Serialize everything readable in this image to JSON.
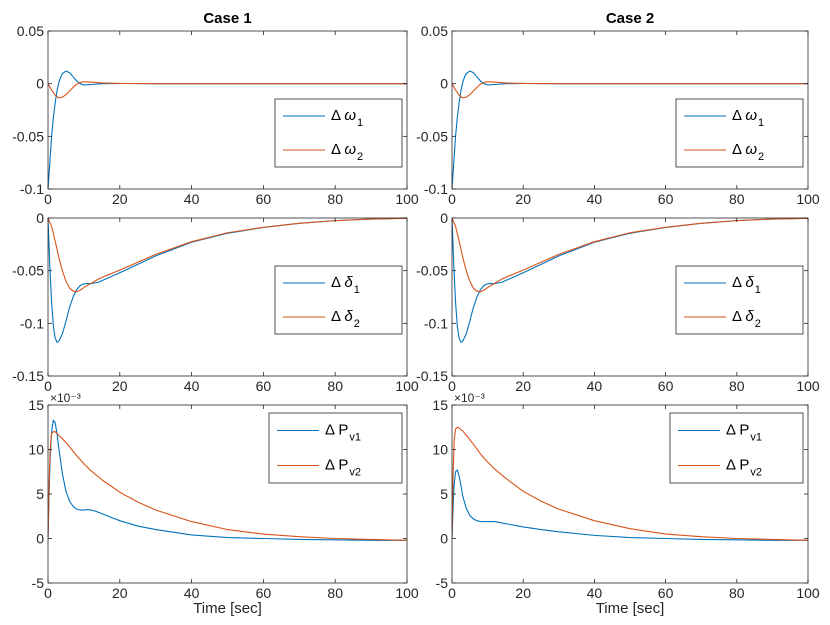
{
  "chart_data": [
    {
      "type": "line",
      "column_title": "Case 1",
      "xlabel": "",
      "xlim": [
        0,
        100
      ],
      "ylim": [
        -0.1,
        0.05
      ],
      "xticks": [
        "0",
        "20",
        "40",
        "60",
        "80",
        "100"
      ],
      "yticks": [
        "0.05",
        "0",
        "-0.05",
        "-0.1"
      ],
      "legend_position": "right",
      "legend": [
        {
          "base": "Δ ",
          "sym": "ω",
          "sub": "1"
        },
        {
          "base": "Δ ",
          "sym": "ω",
          "sub": "2"
        }
      ],
      "series": [
        {
          "name": "Δ ω1",
          "color": "#0072BD",
          "x": [
            0,
            0.5,
            1,
            1.5,
            2,
            2.5,
            3,
            3.5,
            4,
            5,
            6,
            7,
            8,
            9,
            10,
            12,
            15,
            20,
            30,
            50,
            100
          ],
          "y": [
            -0.1,
            -0.075,
            -0.05,
            -0.032,
            -0.018,
            -0.007,
            0.001,
            0.006,
            0.0095,
            0.012,
            0.0105,
            0.0065,
            0.0025,
            0.0,
            -0.0012,
            -0.0008,
            0.0,
            0.0002,
            0.0,
            0.0,
            0.0
          ]
        },
        {
          "name": "Δ ω2",
          "color": "#D95319",
          "x": [
            0,
            1,
            2,
            3,
            4,
            5,
            6,
            7,
            8,
            9,
            10,
            12,
            15,
            20,
            30,
            50,
            100
          ],
          "y": [
            0.0,
            -0.006,
            -0.011,
            -0.0135,
            -0.0128,
            -0.0105,
            -0.007,
            -0.0035,
            -0.0005,
            0.0012,
            0.0018,
            0.0015,
            0.0007,
            0.0002,
            0.0,
            0.0,
            0.0
          ]
        }
      ]
    },
    {
      "type": "line",
      "column_title": "Case 2",
      "xlabel": "",
      "xlim": [
        0,
        100
      ],
      "ylim": [
        -0.1,
        0.05
      ],
      "xticks": [
        "0",
        "20",
        "40",
        "60",
        "80",
        "100"
      ],
      "yticks": [
        "0.05",
        "0",
        "-0.05",
        "-0.1"
      ],
      "legend_position": "right",
      "legend": [
        {
          "base": "Δ ",
          "sym": "ω",
          "sub": "1"
        },
        {
          "base": "Δ ",
          "sym": "ω",
          "sub": "2"
        }
      ],
      "series": [
        {
          "name": "Δ ω1",
          "color": "#0072BD",
          "x": [
            0,
            0.5,
            1,
            1.5,
            2,
            2.5,
            3,
            3.5,
            4,
            5,
            6,
            7,
            8,
            9,
            10,
            12,
            15,
            20,
            30,
            50,
            100
          ],
          "y": [
            -0.1,
            -0.075,
            -0.05,
            -0.032,
            -0.018,
            -0.007,
            0.001,
            0.006,
            0.0095,
            0.012,
            0.0105,
            0.0065,
            0.0025,
            0.0,
            -0.0012,
            -0.0008,
            0.0,
            0.0002,
            0.0,
            0.0,
            0.0
          ]
        },
        {
          "name": "Δ ω2",
          "color": "#D95319",
          "x": [
            0,
            1,
            2,
            3,
            4,
            5,
            6,
            7,
            8,
            9,
            10,
            12,
            15,
            20,
            30,
            50,
            100
          ],
          "y": [
            0.0,
            -0.006,
            -0.011,
            -0.0135,
            -0.0128,
            -0.0105,
            -0.007,
            -0.0035,
            -0.0005,
            0.0012,
            0.0018,
            0.0015,
            0.0007,
            0.0002,
            0.0,
            0.0,
            0.0
          ]
        }
      ]
    },
    {
      "type": "line",
      "column_title": "",
      "xlabel": "",
      "xlim": [
        0,
        100
      ],
      "ylim": [
        -0.15,
        0
      ],
      "xticks": [
        "0",
        "20",
        "40",
        "60",
        "80",
        "100"
      ],
      "yticks": [
        "0",
        "-0.05",
        "-0.1",
        "-0.15"
      ],
      "legend_position": "right",
      "legend": [
        {
          "base": "Δ ",
          "sym": "δ",
          "sub": "1"
        },
        {
          "base": "Δ ",
          "sym": "δ",
          "sub": "2"
        }
      ],
      "series": [
        {
          "name": "Δ δ1",
          "color": "#0072BD",
          "x": [
            0,
            0.5,
            1,
            1.5,
            2,
            2.5,
            3,
            4,
            5,
            6,
            7,
            8,
            9,
            10,
            11,
            12,
            14,
            16,
            20,
            25,
            30,
            40,
            50,
            60,
            70,
            80,
            90,
            100
          ],
          "y": [
            0.0,
            -0.045,
            -0.08,
            -0.103,
            -0.114,
            -0.118,
            -0.117,
            -0.11,
            -0.098,
            -0.085,
            -0.075,
            -0.068,
            -0.064,
            -0.0625,
            -0.0622,
            -0.0623,
            -0.061,
            -0.058,
            -0.052,
            -0.044,
            -0.036,
            -0.023,
            -0.0145,
            -0.009,
            -0.005,
            -0.0025,
            -0.001,
            -0.0003
          ]
        },
        {
          "name": "Δ δ2",
          "color": "#D95319",
          "x": [
            0,
            1,
            2,
            3,
            4,
            5,
            6,
            7,
            8,
            9,
            10,
            12,
            14,
            16,
            20,
            25,
            30,
            40,
            50,
            60,
            70,
            80,
            90,
            100
          ],
          "y": [
            0.0,
            -0.008,
            -0.022,
            -0.037,
            -0.05,
            -0.06,
            -0.0665,
            -0.0695,
            -0.07,
            -0.0685,
            -0.066,
            -0.062,
            -0.058,
            -0.055,
            -0.0495,
            -0.042,
            -0.0345,
            -0.0225,
            -0.014,
            -0.0088,
            -0.005,
            -0.0025,
            -0.001,
            -0.0003
          ]
        }
      ]
    },
    {
      "type": "line",
      "column_title": "",
      "xlabel": "",
      "xlim": [
        0,
        100
      ],
      "ylim": [
        -0.15,
        0
      ],
      "xticks": [
        "0",
        "20",
        "40",
        "60",
        "80",
        "100"
      ],
      "yticks": [
        "0",
        "-0.05",
        "-0.1",
        "-0.15"
      ],
      "legend_position": "right",
      "legend": [
        {
          "base": "Δ ",
          "sym": "δ",
          "sub": "1"
        },
        {
          "base": "Δ ",
          "sym": "δ",
          "sub": "2"
        }
      ],
      "series": [
        {
          "name": "Δ δ1",
          "color": "#0072BD",
          "x": [
            0,
            0.5,
            1,
            1.5,
            2,
            2.5,
            3,
            4,
            5,
            6,
            7,
            8,
            9,
            10,
            11,
            12,
            14,
            16,
            20,
            25,
            30,
            40,
            50,
            60,
            70,
            80,
            90,
            100
          ],
          "y": [
            0.0,
            -0.045,
            -0.08,
            -0.103,
            -0.114,
            -0.118,
            -0.117,
            -0.11,
            -0.098,
            -0.085,
            -0.075,
            -0.068,
            -0.064,
            -0.0625,
            -0.0622,
            -0.0623,
            -0.061,
            -0.058,
            -0.052,
            -0.044,
            -0.036,
            -0.023,
            -0.0145,
            -0.009,
            -0.005,
            -0.0025,
            -0.001,
            -0.0003
          ]
        },
        {
          "name": "Δ δ2",
          "color": "#D95319",
          "x": [
            0,
            1,
            2,
            3,
            4,
            5,
            6,
            7,
            8,
            9,
            10,
            12,
            14,
            16,
            20,
            25,
            30,
            40,
            50,
            60,
            70,
            80,
            90,
            100
          ],
          "y": [
            0.0,
            -0.008,
            -0.022,
            -0.037,
            -0.05,
            -0.06,
            -0.0665,
            -0.0695,
            -0.07,
            -0.0685,
            -0.066,
            -0.062,
            -0.058,
            -0.055,
            -0.0495,
            -0.042,
            -0.0345,
            -0.0225,
            -0.014,
            -0.0088,
            -0.005,
            -0.0025,
            -0.001,
            -0.0003
          ]
        }
      ]
    },
    {
      "type": "line",
      "column_title": "",
      "xlabel": "Time [sec]",
      "xlim": [
        0,
        100
      ],
      "ylim": [
        -5,
        15
      ],
      "y_multiplier": "×10⁻³",
      "xticks": [
        "0",
        "20",
        "40",
        "60",
        "80",
        "100"
      ],
      "yticks": [
        "15",
        "10",
        "5",
        "0",
        "-5"
      ],
      "legend_position": "top-right",
      "legend": [
        {
          "base": "Δ P",
          "sym": "",
          "sub": "v1"
        },
        {
          "base": "Δ P",
          "sym": "",
          "sub": "v2"
        }
      ],
      "series": [
        {
          "name": "Δ Pv1",
          "color": "#0072BD",
          "x": [
            0,
            0.3,
            0.6,
            1,
            1.5,
            2,
            2.5,
            3,
            4,
            5,
            6,
            7,
            8,
            9,
            10,
            11,
            12,
            13,
            15,
            18,
            20,
            25,
            30,
            40,
            50,
            60,
            70,
            80,
            90,
            100
          ],
          "y": [
            0.0,
            5.0,
            9.0,
            12.0,
            13.3,
            13.0,
            11.8,
            10.2,
            7.3,
            5.3,
            4.2,
            3.6,
            3.3,
            3.2,
            3.2,
            3.25,
            3.2,
            3.1,
            2.8,
            2.3,
            2.0,
            1.4,
            1.0,
            0.4,
            0.1,
            0.0,
            -0.1,
            -0.15,
            -0.2,
            -0.2
          ]
        },
        {
          "name": "Δ Pv2",
          "color": "#D95319",
          "x": [
            0,
            0.3,
            0.6,
            1,
            1.5,
            2,
            3,
            4,
            5,
            6,
            8,
            10,
            12,
            15,
            20,
            25,
            30,
            40,
            50,
            60,
            70,
            80,
            90,
            100
          ],
          "y": [
            0.0,
            6.0,
            10.0,
            11.8,
            12.0,
            12.0,
            11.6,
            11.2,
            10.8,
            10.3,
            9.3,
            8.4,
            7.6,
            6.6,
            5.2,
            4.1,
            3.2,
            1.9,
            1.0,
            0.5,
            0.2,
            0.0,
            -0.1,
            -0.2
          ]
        }
      ]
    },
    {
      "type": "line",
      "column_title": "",
      "xlabel": "Time [sec]",
      "xlim": [
        0,
        100
      ],
      "ylim": [
        -5,
        15
      ],
      "y_multiplier": "×10⁻³",
      "xticks": [
        "0",
        "20",
        "40",
        "60",
        "80",
        "100"
      ],
      "yticks": [
        "15",
        "10",
        "5",
        "0",
        "-5"
      ],
      "legend_position": "top-right",
      "legend": [
        {
          "base": "Δ P",
          "sym": "",
          "sub": "v1"
        },
        {
          "base": "Δ P",
          "sym": "",
          "sub": "v2"
        }
      ],
      "series": [
        {
          "name": "Δ Pv1",
          "color": "#0072BD",
          "x": [
            0,
            0.3,
            0.6,
            1,
            1.5,
            2,
            2.5,
            3,
            4,
            5,
            6,
            7,
            8,
            9,
            10,
            11,
            12,
            14,
            16,
            20,
            25,
            30,
            40,
            50,
            60,
            70,
            80,
            90,
            100
          ],
          "y": [
            0.0,
            3.5,
            6.0,
            7.5,
            7.7,
            7.0,
            6.0,
            4.8,
            3.4,
            2.6,
            2.2,
            2.0,
            1.9,
            1.9,
            1.9,
            1.9,
            1.9,
            1.75,
            1.6,
            1.3,
            1.0,
            0.75,
            0.35,
            0.1,
            0.0,
            -0.1,
            -0.15,
            -0.2,
            -0.2
          ]
        },
        {
          "name": "Δ Pv2",
          "color": "#D95319",
          "x": [
            0,
            0.3,
            0.6,
            1,
            1.5,
            2,
            3,
            4,
            5,
            6,
            8,
            10,
            12,
            15,
            20,
            25,
            30,
            40,
            50,
            60,
            70,
            80,
            90,
            100
          ],
          "y": [
            0.0,
            7.0,
            11.0,
            12.3,
            12.5,
            12.4,
            12.1,
            11.6,
            11.1,
            10.6,
            9.5,
            8.6,
            7.8,
            6.8,
            5.3,
            4.2,
            3.3,
            2.0,
            1.1,
            0.5,
            0.2,
            0.0,
            -0.1,
            -0.2
          ]
        }
      ]
    }
  ]
}
